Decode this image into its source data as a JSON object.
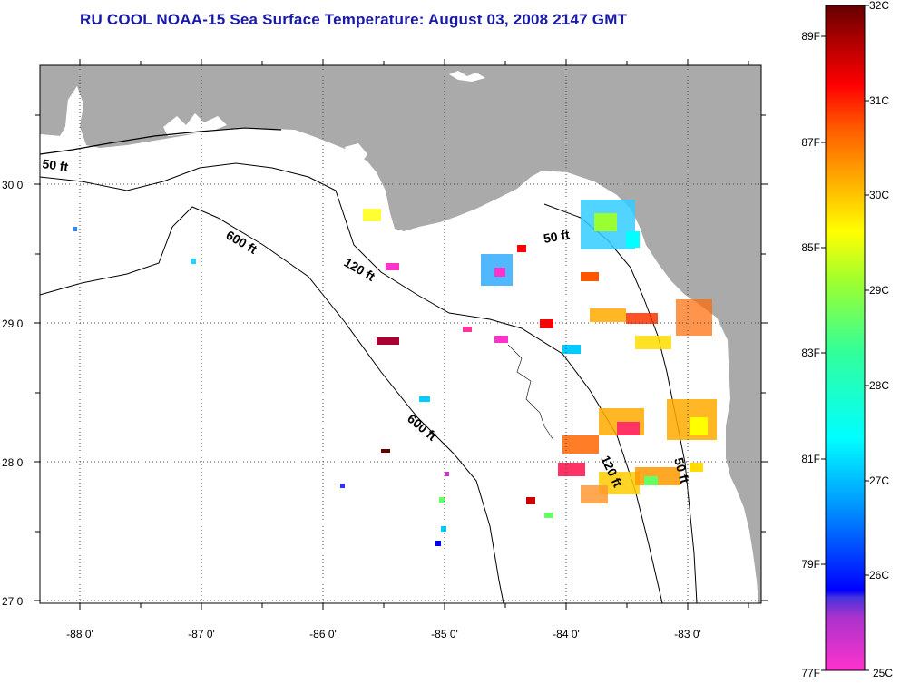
{
  "title": "RU COOL  NOAA-15  Sea Surface Temperature:  August 03, 2008 2147 GMT",
  "map": {
    "x_ticks": [
      "-88 0'",
      "-87 0'",
      "-86 0'",
      "-85 0'",
      "-84 0'",
      "-83 0'"
    ],
    "y_ticks": [
      "30 0'",
      "29 0'",
      "28 0'",
      "27 0'"
    ],
    "contours": [
      "50 ft",
      "600 ft",
      "120 ft",
      "50 ft",
      "600 ft",
      "120 ft",
      "50 ft"
    ],
    "colors": {
      "land": "#aaaaaa",
      "ocean": "#ffffff",
      "grid": "#000000"
    }
  },
  "colorbar": {
    "celsius": [
      "32C",
      "31C",
      "30C",
      "29C",
      "28C",
      "27C",
      "26C",
      "25C"
    ],
    "fahrenheit": [
      "89F",
      "87F",
      "85F",
      "83F",
      "81F",
      "79F",
      "77F"
    ],
    "gradient": [
      "#ff33cc",
      "#8833dd",
      "#0000ff",
      "#0099ff",
      "#00ffff",
      "#33ff99",
      "#99ff33",
      "#ffff00",
      "#ffaa00",
      "#ff5500",
      "#ff0000",
      "#aa0000",
      "#660000"
    ]
  }
}
